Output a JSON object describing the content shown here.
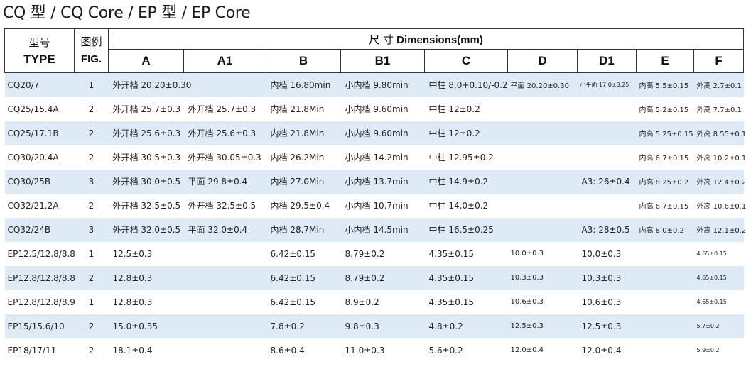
{
  "title": "CQ 型  / CQ Core / EP 型  / EP Core",
  "header": {
    "type_cn": "型号",
    "type_en": "TYPE",
    "fig_cn": "图例",
    "fig_en": "FIG.",
    "dims_cn": "尺 寸",
    "dims_en": "Dimensions(mm)",
    "columns": [
      "A",
      "A1",
      "B",
      "B1",
      "C",
      "D",
      "D1",
      "E",
      "F"
    ]
  },
  "rows": [
    {
      "type": "CQ20/7",
      "fig": "1",
      "a": "外开档 20.20±0.30",
      "a1": "",
      "b": "内档 16.80min",
      "b1": "小内档 9.80min",
      "c": "中柱 8.0+0.10/-0.2",
      "d": "平面 20.20±0.30",
      "d1": "小平面 17.0±0.25",
      "e": "内高 5.5±0.15",
      "f": "外高 2.7±0.1"
    },
    {
      "type": "CQ25/15.4A",
      "fig": "2",
      "a": "外开档 25.7±0.3",
      "a1": "外开档 25.7±0.3",
      "b": "内档 21.8Min",
      "b1": "小内档 9.60min",
      "c": "中柱 12±0.2",
      "d": "",
      "d1": "",
      "e": "内高 5.2±0.15",
      "f": "外高 7.7±0.1"
    },
    {
      "type": "CQ25/17.1B",
      "fig": "2",
      "a": "外开档 25.6±0.3",
      "a1": "外开档 25.6±0.3",
      "b": "内档 21.8Min",
      "b1": "小内档 9.60min",
      "c": "中柱 12±0.2",
      "d": "",
      "d1": "",
      "e": "内高 5.25±0.15",
      "f": "外高 8.55±0.1"
    },
    {
      "type": "CQ30/20.4A",
      "fig": "2",
      "a": "外开档 30.5±0.3",
      "a1": "外开档 30.05±0.3",
      "b": "内档 26.2Min",
      "b1": "小内档 14.2min",
      "c": "中柱 12.95±0.2",
      "d": "",
      "d1": "",
      "e": "内高 6.7±0.15",
      "f": "外高 10.2±0.1"
    },
    {
      "type": "CQ30/25B",
      "fig": "3",
      "a": "外开档 30.0±0.5",
      "a1": "平面 29.8±0.4",
      "b": "内档 27.0Min",
      "b1": "小内档 13.7min",
      "c": "中柱 14.9±0.2",
      "d": "",
      "d1": "A3:   26±0.4",
      "e": "内高 8.25±0.2",
      "f": "外高 12.4±0.2"
    },
    {
      "type": "CQ32/21.2A",
      "fig": "2",
      "a": "外开档 32.5±0.5",
      "a1": "外开档 32.5±0.5",
      "b": "内档 29.5±0.4",
      "b1": "小内档 10.7min",
      "c": "中柱 14.0±0.2",
      "d": "",
      "d1": "",
      "e": "内高 6.7±0.15",
      "f": "外高 10.6±0.1"
    },
    {
      "type": "CQ32/24B",
      "fig": "3",
      "a": "外开档 32.0±0.5",
      "a1": "平面 32.0±0.4",
      "b": "内档 28.7Min",
      "b1": "小内档 14.5min",
      "c": "中柱 16.5±0.25",
      "d": "",
      "d1": "A3:   28±0.5",
      "e": "内高 8.0±0.2",
      "f": "外高 12.1±0.2"
    },
    {
      "type": "EP12.5/12.8/8.8",
      "fig": "1",
      "a": "12.5±0.3",
      "a1": "",
      "b": "6.42±0.15",
      "b1": "8.79±0.2",
      "c": "4.35±0.15",
      "d": "10.0±0.3",
      "d1": "10.0±0.3",
      "e": "",
      "f": "4.65±0.15"
    },
    {
      "type": "EP12.8/12.8/8.8",
      "fig": "2",
      "a": "12.8±0.3",
      "a1": "",
      "b": "6.42±0.15",
      "b1": "8.79±0.2",
      "c": "4.35±0.15",
      "d": "10.3±0.3",
      "d1": "10.3±0.3",
      "e": "",
      "f": "4.65±0.15"
    },
    {
      "type": "EP12.8/12.8/8.9",
      "fig": "1",
      "a": "12.8±0.3",
      "a1": "",
      "b": "6.42±0.15",
      "b1": "8.9±0.2",
      "c": "4.35±0.15",
      "d": "10.6±0.3",
      "d1": "10.6±0.3",
      "e": "",
      "f": "4.65±0.15"
    },
    {
      "type": "EP15/15.6/10",
      "fig": "2",
      "a": "15.0±0.35",
      "a1": "",
      "b": "7.8±0.2",
      "b1": "9.8±0.3",
      "c": "4.8±0.2",
      "d": "12.5±0.3",
      "d1": "12.5±0.3",
      "e": "",
      "f": "5.7±0.2"
    },
    {
      "type": "EP18/17/11",
      "fig": "2",
      "a": "18.1±0.4",
      "a1": "",
      "b": "8.6±0.4",
      "b1": "11.0±0.3",
      "c": "5.6±0.2",
      "d": "12.0±0.4",
      "d1": "12.0±0.4",
      "e": "",
      "f": "5.9±0.2"
    }
  ]
}
